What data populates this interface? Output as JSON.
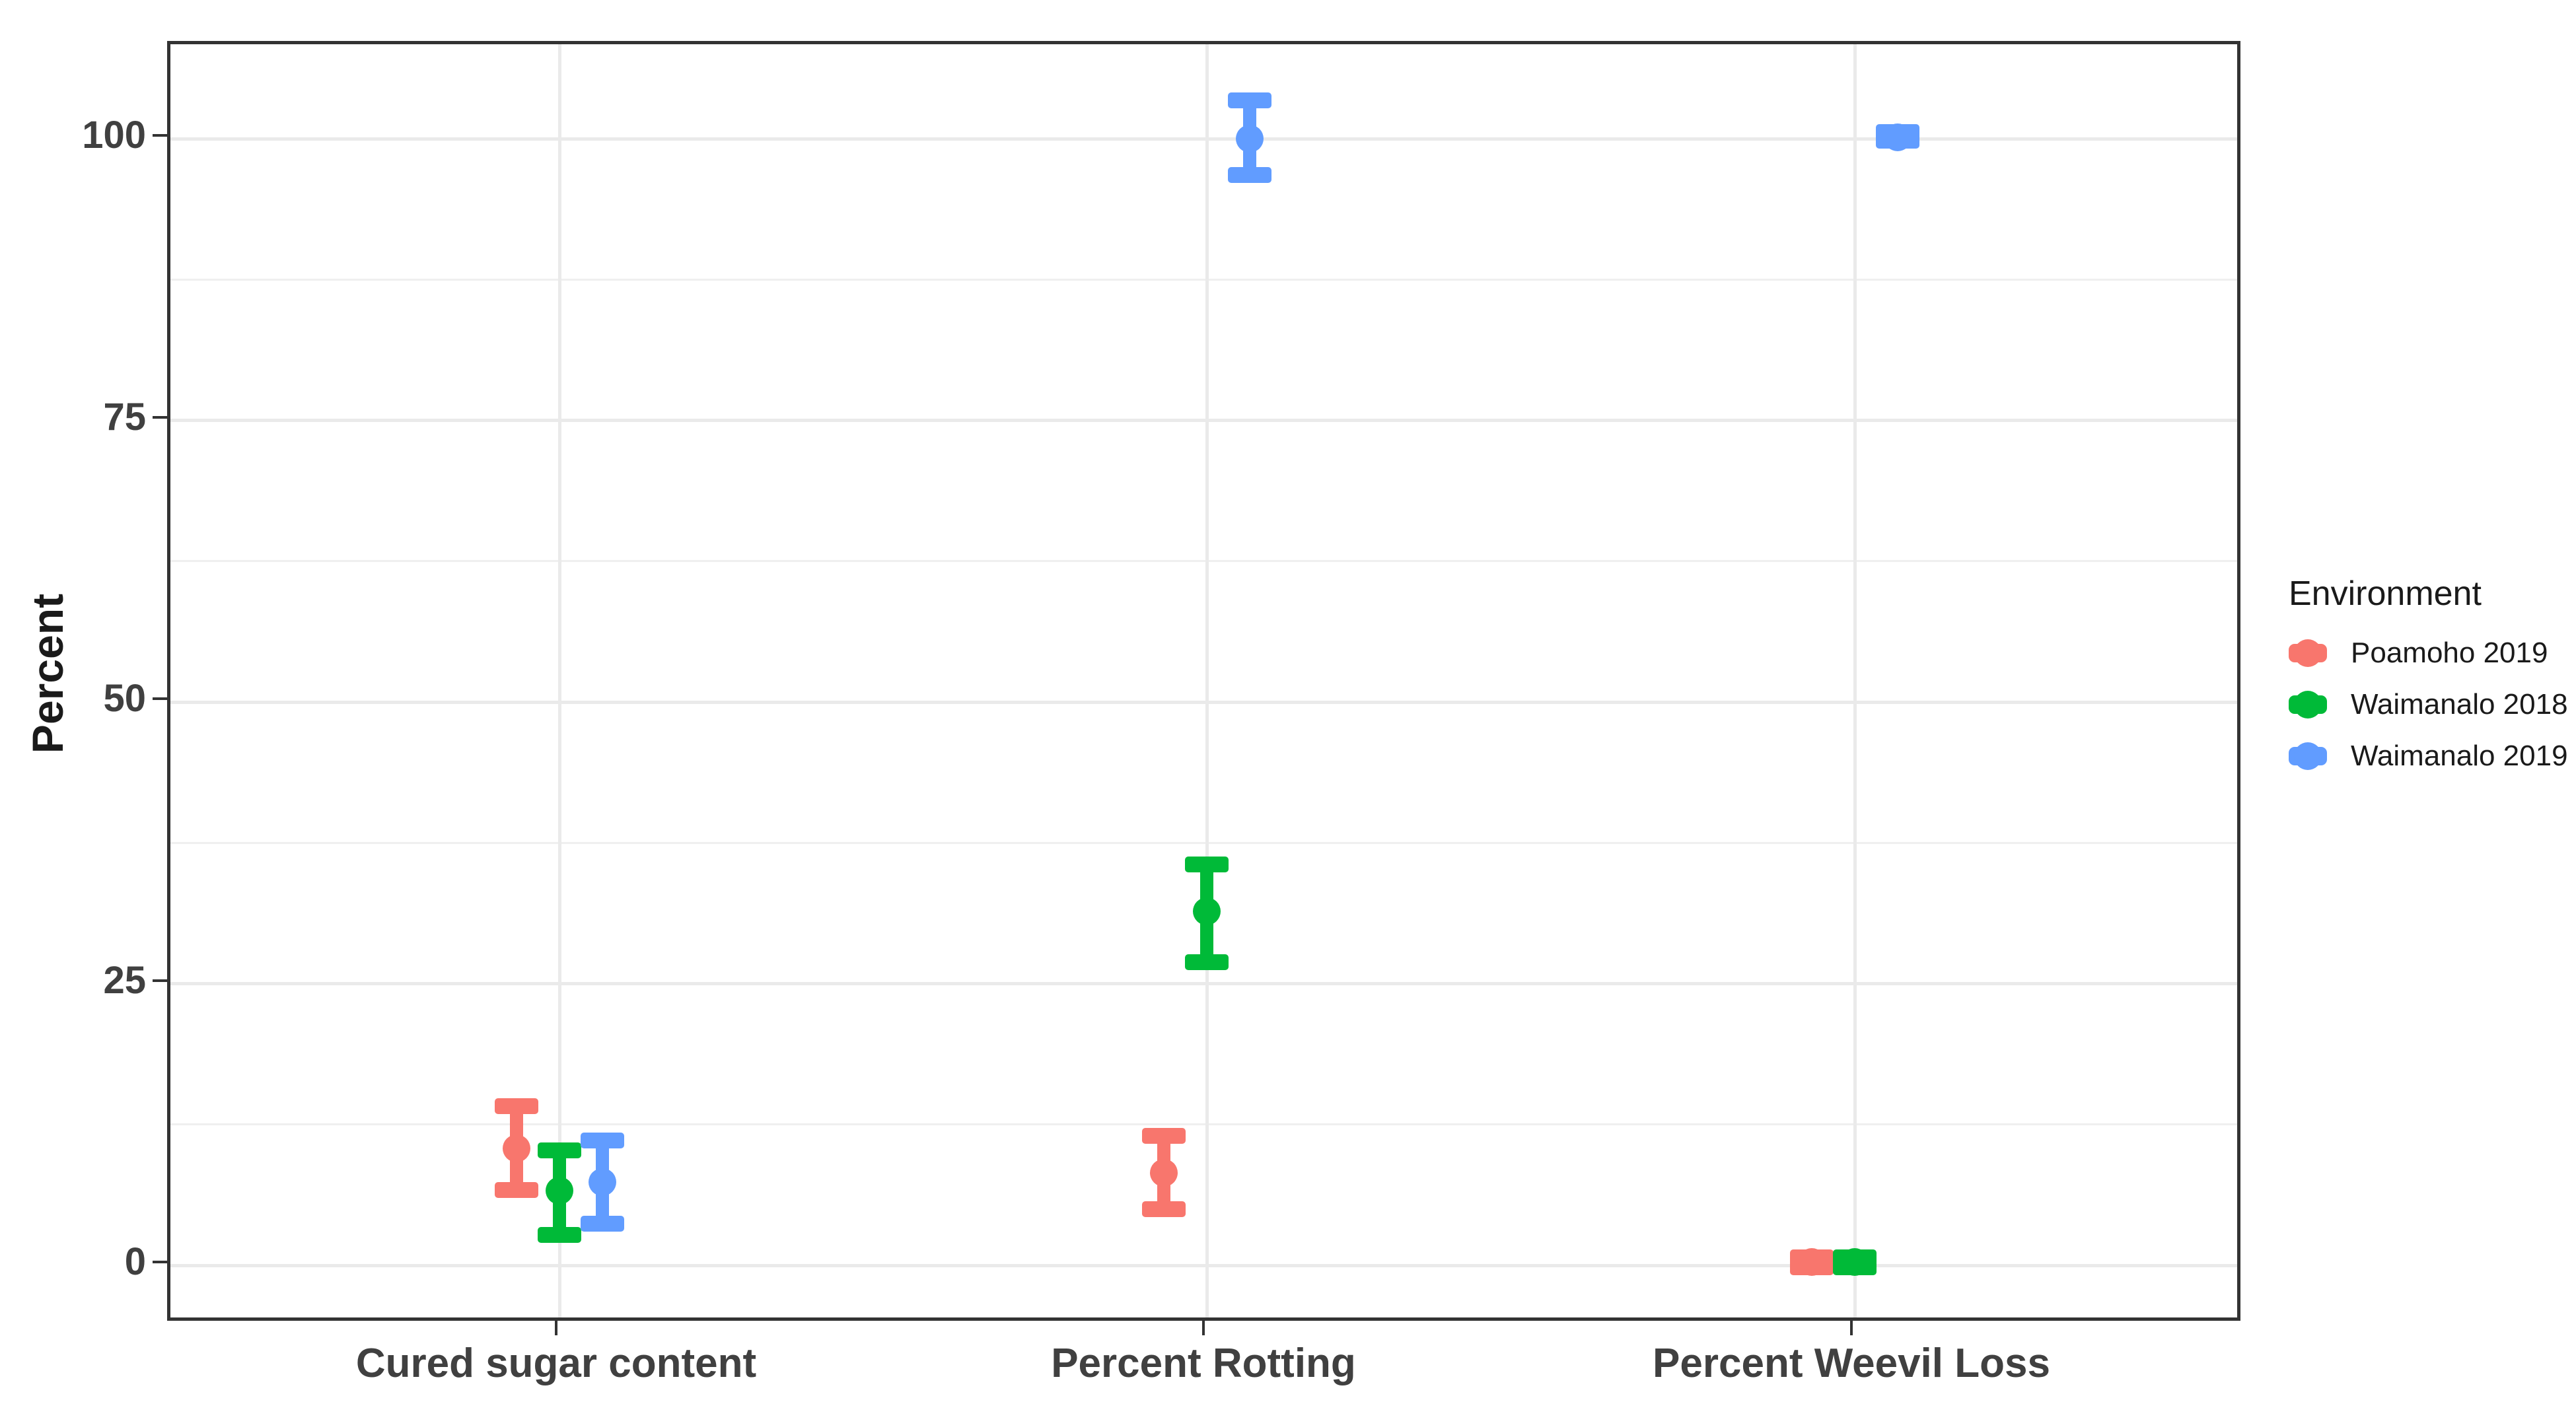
{
  "figure": {
    "y_axis": {
      "title": "Percent",
      "tick_labels": [
        "100",
        "75",
        "50",
        "25",
        "0"
      ],
      "tick_values": [
        100,
        75,
        50,
        25,
        0
      ]
    },
    "x_axis": {
      "categories": [
        "Cured sugar content",
        "Percent Rotting",
        "Percent Weevil Loss"
      ]
    },
    "legend": {
      "title": "Environment",
      "items": [
        {
          "label": "Poamoho 2019",
          "color": "#F8766D"
        },
        {
          "label": "Waimanalo 2018",
          "color": "#00BA38"
        },
        {
          "label": "Waimanalo 2019",
          "color": "#619CFF"
        }
      ]
    },
    "colors": {
      "panel_border": "#333333",
      "grid_major": "#EAEAEA",
      "grid_minor": "#EFEFEF",
      "axis_text": "#404040",
      "background": "#ffffff"
    }
  },
  "chart_data": {
    "type": "pointrange",
    "title": "",
    "xlabel": "",
    "ylabel": "Percent",
    "ylim": [
      0,
      100
    ],
    "grid": true,
    "legend_position": "right",
    "y_major_gridlines": [
      0,
      25,
      50,
      75,
      100
    ],
    "y_minor_gridlines": [
      12.5,
      37.5,
      62.5,
      87.5
    ],
    "categories": [
      "Cured sugar content",
      "Percent Rotting",
      "Percent Weevil Loss"
    ],
    "series": [
      {
        "name": "Poamoho 2019",
        "color": "#F8766D",
        "values": [
          {
            "mid": 10.4,
            "lo": 6.7,
            "hi": 14.1
          },
          {
            "mid": 8.2,
            "lo": 5.0,
            "hi": 11.5
          },
          {
            "mid": 0.3,
            "lo": -0.2,
            "hi": 0.7
          }
        ]
      },
      {
        "name": "Waimanalo 2018",
        "color": "#00BA38",
        "values": [
          {
            "mid": 6.6,
            "lo": 2.7,
            "hi": 10.2
          },
          {
            "mid": 31.4,
            "lo": 26.9,
            "hi": 35.6
          },
          {
            "mid": 0.3,
            "lo": -0.2,
            "hi": 0.7
          }
        ]
      },
      {
        "name": "Waimanalo 2019",
        "color": "#619CFF",
        "values": [
          {
            "mid": 7.4,
            "lo": 3.7,
            "hi": 11.1
          },
          {
            "mid": 100.0,
            "lo": 96.8,
            "hi": 103.4
          },
          {
            "mid": 100.1,
            "lo": 99.8,
            "hi": 100.6
          }
        ]
      }
    ]
  }
}
